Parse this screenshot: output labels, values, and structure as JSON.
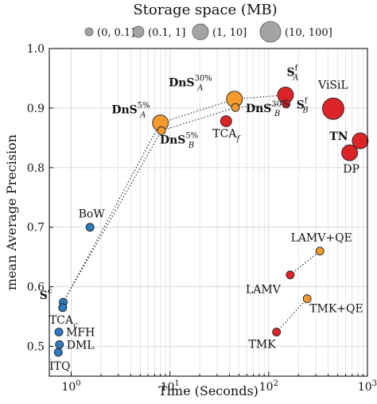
{
  "chart_data": {
    "type": "scatter",
    "title": "Storage space (MB)",
    "xlabel": "Time (Seconds)",
    "ylabel": "mean Average Precision",
    "xscale": "log",
    "xlim": [
      0.6,
      1000
    ],
    "ylim": [
      0.45,
      1.0
    ],
    "grid": true,
    "x_tick_labels": [
      "10^0",
      "10^1",
      "10^2",
      "10^3"
    ],
    "y_tick_labels": [
      "0.5",
      "0.6",
      "0.7",
      "0.8",
      "0.9",
      "1.0"
    ],
    "legend": {
      "placement": "top",
      "entries": [
        {
          "label": "(0, 0.1]",
          "size_class": 1
        },
        {
          "label": "(0.1, 1]",
          "size_class": 2
        },
        {
          "label": "(1, 10]",
          "size_class": 3
        },
        {
          "label": "(10, 100]",
          "size_class": 4
        }
      ]
    },
    "colors": {
      "blue": "#2e7bbf",
      "orange": "#f59a2c",
      "red": "#dc2327"
    },
    "points": [
      {
        "label": "BoW",
        "x": 1.55,
        "y": 0.7,
        "color": "blue",
        "size_class": 1
      },
      {
        "label": "S^c",
        "x": 0.83,
        "y": 0.574,
        "color": "blue",
        "size_class": 1
      },
      {
        "label": "TCA_c",
        "x": 0.82,
        "y": 0.565,
        "color": "blue",
        "size_class": 1
      },
      {
        "label": "MFH",
        "x": 0.75,
        "y": 0.524,
        "color": "blue",
        "size_class": 1
      },
      {
        "label": "DML",
        "x": 0.76,
        "y": 0.503,
        "color": "blue",
        "size_class": 1
      },
      {
        "label": "ITQ",
        "x": 0.74,
        "y": 0.49,
        "color": "blue",
        "size_class": 1
      },
      {
        "label": "DnS^5%_A",
        "x": 8.0,
        "y": 0.875,
        "color": "orange",
        "size_class": 3
      },
      {
        "label": "DnS^5%_B",
        "x": 8.2,
        "y": 0.862,
        "color": "orange",
        "size_class": 1
      },
      {
        "label": "DnS^30%_A",
        "x": 45,
        "y": 0.915,
        "color": "orange",
        "size_class": 3
      },
      {
        "label": "DnS^30%_B",
        "x": 46,
        "y": 0.901,
        "color": "orange",
        "size_class": 1
      },
      {
        "label": "TCA_f",
        "x": 37,
        "y": 0.878,
        "color": "red",
        "size_class": 2
      },
      {
        "label": "S^f_A",
        "x": 148,
        "y": 0.922,
        "color": "red",
        "size_class": 3
      },
      {
        "label": "S^f_B",
        "x": 150,
        "y": 0.907,
        "color": "red",
        "size_class": 1
      },
      {
        "label": "ViSiL",
        "x": 450,
        "y": 0.899,
        "color": "red",
        "size_class": 4
      },
      {
        "label": "TN",
        "x": 845,
        "y": 0.845,
        "color": "red",
        "size_class": 3
      },
      {
        "label": "DP",
        "x": 660,
        "y": 0.825,
        "color": "red",
        "size_class": 3
      },
      {
        "label": "LAMV+QE",
        "x": 330,
        "y": 0.66,
        "color": "orange",
        "size_class": 1
      },
      {
        "label": "LAMV",
        "x": 165,
        "y": 0.62,
        "color": "red",
        "size_class": 1
      },
      {
        "label": "TMK+QE",
        "x": 245,
        "y": 0.58,
        "color": "orange",
        "size_class": 1
      },
      {
        "label": "TMK",
        "x": 120,
        "y": 0.524,
        "color": "red",
        "size_class": 1
      }
    ],
    "dotted_connections": [
      [
        "S^c",
        "DnS^5%_A"
      ],
      [
        "S^c",
        "DnS^5%_B"
      ],
      [
        "DnS^5%_A",
        "DnS^30%_A"
      ],
      [
        "DnS^5%_B",
        "DnS^30%_B"
      ],
      [
        "DnS^30%_A",
        "S^f_A"
      ],
      [
        "DnS^30%_B",
        "S^f_B"
      ],
      [
        "TMK",
        "TMK+QE"
      ],
      [
        "LAMV",
        "LAMV+QE"
      ]
    ]
  }
}
